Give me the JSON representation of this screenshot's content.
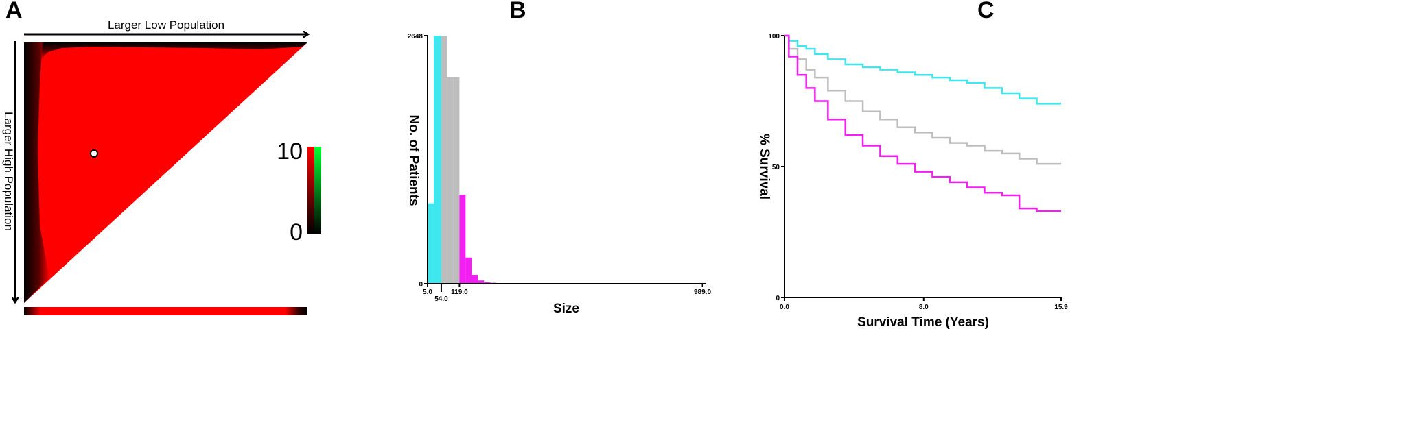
{
  "panels": {
    "a": {
      "letter": "A"
    },
    "b": {
      "letter": "B"
    },
    "c": {
      "letter": "C"
    }
  },
  "colors": {
    "cyan": "#3ee6ee",
    "grey": "#bdbdbd",
    "magenta": "#f21ff2",
    "red": "#ff0000",
    "green": "#00ff33",
    "black": "#000000"
  },
  "chart_data": [
    {
      "type": "heatmap",
      "panel": "A",
      "xlabel": "Larger Low Population",
      "ylabel": "Larger High Population",
      "shape": "upper-left triangle",
      "dominant_color": "red",
      "colorbar": {
        "min_label": "0",
        "max_label": "10",
        "min": 0,
        "max": 10,
        "colors": [
          "black",
          "red",
          "green"
        ]
      },
      "marker": {
        "row_fraction": 0.35,
        "col_fraction": 0.26
      },
      "bottom_strip": true
    },
    {
      "type": "bar",
      "panel": "B",
      "xlabel": "Size",
      "ylabel": "No. of Patients",
      "ylim": [
        0,
        2648
      ],
      "y_tick_labels": [
        "0",
        "2648"
      ],
      "x_tick_labels": [
        "5.0",
        "54.0",
        "119.0",
        "989.0"
      ],
      "x_tick_values": [
        5.0,
        54.0,
        119.0,
        989.0
      ],
      "xlim": [
        5.0,
        1000.0
      ],
      "groups": [
        {
          "color": "cyan",
          "range": [
            5.0,
            54.0
          ]
        },
        {
          "color": "grey",
          "range": [
            54.0,
            119.0
          ]
        },
        {
          "color": "magenta",
          "range": [
            119.0,
            1000.0
          ]
        }
      ],
      "bins": [
        {
          "x0": 5,
          "x1": 27,
          "value": 858,
          "group": "cyan"
        },
        {
          "x0": 27,
          "x1": 54,
          "value": 2648,
          "group": "cyan"
        },
        {
          "x0": 54,
          "x1": 76,
          "value": 2648,
          "group": "grey"
        },
        {
          "x0": 76,
          "x1": 98,
          "value": 2205,
          "group": "grey"
        },
        {
          "x0": 98,
          "x1": 119,
          "value": 2205,
          "group": "grey"
        },
        {
          "x0": 119,
          "x1": 141,
          "value": 950,
          "group": "magenta"
        },
        {
          "x0": 141,
          "x1": 163,
          "value": 280,
          "group": "magenta"
        },
        {
          "x0": 163,
          "x1": 185,
          "value": 95,
          "group": "magenta"
        },
        {
          "x0": 185,
          "x1": 207,
          "value": 35,
          "group": "magenta"
        },
        {
          "x0": 207,
          "x1": 229,
          "value": 15,
          "group": "magenta"
        },
        {
          "x0": 229,
          "x1": 251,
          "value": 10,
          "group": "magenta"
        },
        {
          "x0": 251,
          "x1": 273,
          "value": 5,
          "group": "magenta"
        },
        {
          "x0": 978,
          "x1": 1000,
          "value": 8,
          "group": "magenta"
        }
      ]
    },
    {
      "type": "line",
      "panel": "C",
      "xlabel": "Survival Time (Years)",
      "ylabel": "% Survival",
      "xlim": [
        0.0,
        15.9
      ],
      "ylim": [
        0,
        100
      ],
      "x_tick_labels": [
        "0.0",
        "8.0",
        "15.9"
      ],
      "x_tick_values": [
        0.0,
        8.0,
        15.9
      ],
      "y_tick_labels": [
        "0",
        "50",
        "100"
      ],
      "y_tick_values": [
        0,
        50,
        100
      ],
      "series": [
        {
          "color": "cyan",
          "x": [
            0,
            0.5,
            1,
            1.5,
            2,
            3,
            4,
            5,
            6,
            7,
            8,
            9,
            10,
            11,
            12,
            13,
            14,
            15,
            15.9
          ],
          "y": [
            100,
            98,
            96,
            95,
            93,
            91,
            89,
            88,
            87,
            86,
            85,
            84,
            83,
            82,
            80,
            78,
            76,
            74,
            74
          ]
        },
        {
          "color": "grey",
          "x": [
            0,
            0.5,
            1,
            1.5,
            2,
            3,
            4,
            5,
            6,
            7,
            8,
            9,
            10,
            11,
            12,
            13,
            14,
            15,
            15.9
          ],
          "y": [
            100,
            95,
            91,
            87,
            84,
            79,
            75,
            71,
            68,
            65,
            63,
            61,
            59,
            58,
            56,
            55,
            53,
            51,
            51
          ]
        },
        {
          "color": "magenta",
          "x": [
            0,
            0.5,
            1,
            1.5,
            2,
            3,
            4,
            5,
            6,
            7,
            8,
            9,
            10,
            11,
            12,
            13,
            14,
            15,
            15.9
          ],
          "y": [
            100,
            92,
            85,
            80,
            75,
            68,
            62,
            58,
            54,
            51,
            48,
            46,
            44,
            42,
            40,
            39,
            34,
            33,
            33
          ]
        }
      ]
    }
  ]
}
